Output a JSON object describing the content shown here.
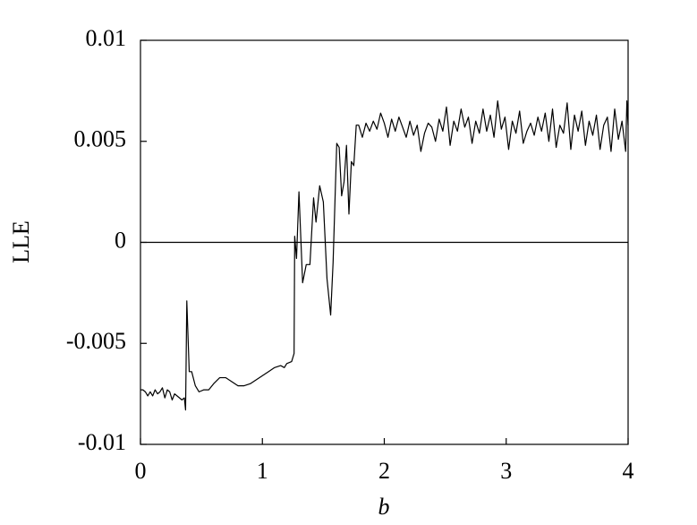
{
  "chart_data": {
    "type": "line",
    "xlabel": "b",
    "ylabel": "LLE",
    "xlim": [
      0,
      4
    ],
    "ylim": [
      -0.01,
      0.01
    ],
    "xticks": [
      0,
      1,
      2,
      3,
      4
    ],
    "yticks": [
      -0.01,
      -0.005,
      0,
      0.005,
      0.01
    ],
    "hline": 0,
    "series": [
      {
        "color": "#000000",
        "x": [
          0,
          0.02,
          0.04,
          0.06,
          0.08,
          0.1,
          0.12,
          0.14,
          0.16,
          0.18,
          0.2,
          0.22,
          0.24,
          0.26,
          0.28,
          0.3,
          0.32,
          0.34,
          0.36,
          0.37,
          0.38,
          0.4,
          0.42,
          0.45,
          0.48,
          0.52,
          0.56,
          0.6,
          0.65,
          0.7,
          0.75,
          0.8,
          0.85,
          0.9,
          0.95,
          1.0,
          1.05,
          1.1,
          1.15,
          1.18,
          1.2,
          1.24,
          1.26,
          1.265,
          1.28,
          1.3,
          1.33,
          1.36,
          1.39,
          1.42,
          1.44,
          1.47,
          1.5,
          1.53,
          1.56,
          1.58,
          1.61,
          1.63,
          1.65,
          1.67,
          1.69,
          1.71,
          1.73,
          1.75,
          1.77,
          1.79,
          1.82,
          1.85,
          1.88,
          1.91,
          1.94,
          1.97,
          2.0,
          2.03,
          2.06,
          2.09,
          2.12,
          2.15,
          2.18,
          2.21,
          2.24,
          2.27,
          2.3,
          2.33,
          2.36,
          2.39,
          2.42,
          2.45,
          2.48,
          2.51,
          2.54,
          2.57,
          2.6,
          2.63,
          2.66,
          2.69,
          2.72,
          2.75,
          2.78,
          2.81,
          2.84,
          2.87,
          2.9,
          2.93,
          2.96,
          2.99,
          3.02,
          3.05,
          3.08,
          3.11,
          3.14,
          3.17,
          3.2,
          3.23,
          3.26,
          3.29,
          3.32,
          3.35,
          3.38,
          3.41,
          3.44,
          3.47,
          3.5,
          3.53,
          3.56,
          3.59,
          3.62,
          3.65,
          3.68,
          3.71,
          3.74,
          3.77,
          3.8,
          3.83,
          3.86,
          3.89,
          3.92,
          3.95,
          3.98,
          3.99,
          4.0
        ],
        "values": [
          -0.0073,
          -0.0073,
          -0.0074,
          -0.0076,
          -0.0074,
          -0.0076,
          -0.0073,
          -0.0075,
          -0.0074,
          -0.0072,
          -0.0077,
          -0.0073,
          -0.0074,
          -0.0078,
          -0.0075,
          -0.0076,
          -0.0077,
          -0.0078,
          -0.0077,
          -0.0083,
          -0.0029,
          -0.0064,
          -0.0064,
          -0.0071,
          -0.0074,
          -0.0073,
          -0.0073,
          -0.007,
          -0.0067,
          -0.0067,
          -0.0069,
          -0.0071,
          -0.0071,
          -0.007,
          -0.0068,
          -0.0066,
          -0.0064,
          -0.0062,
          -0.0061,
          -0.0062,
          -0.006,
          -0.0059,
          -0.0055,
          0.0003,
          -0.0008,
          0.0025,
          -0.002,
          -0.0011,
          -0.0011,
          0.0022,
          0.001,
          0.0028,
          0.002,
          -0.0018,
          -0.0036,
          -0.001,
          0.0049,
          0.0047,
          0.0023,
          0.003,
          0.0048,
          0.0014,
          0.004,
          0.0038,
          0.0058,
          0.0058,
          0.0052,
          0.0059,
          0.0055,
          0.006,
          0.0056,
          0.0064,
          0.0059,
          0.0052,
          0.0061,
          0.0055,
          0.0062,
          0.0057,
          0.0052,
          0.006,
          0.0053,
          0.0058,
          0.0045,
          0.0054,
          0.0059,
          0.0057,
          0.005,
          0.0061,
          0.0055,
          0.0067,
          0.0048,
          0.006,
          0.0055,
          0.0066,
          0.0057,
          0.0062,
          0.0049,
          0.006,
          0.0054,
          0.0066,
          0.0055,
          0.0063,
          0.0052,
          0.007,
          0.0056,
          0.0062,
          0.0046,
          0.006,
          0.0054,
          0.0065,
          0.0049,
          0.0055,
          0.0059,
          0.0053,
          0.0062,
          0.0055,
          0.0064,
          0.005,
          0.0066,
          0.0047,
          0.0058,
          0.0054,
          0.0069,
          0.0046,
          0.0063,
          0.0055,
          0.0065,
          0.0048,
          0.006,
          0.0053,
          0.0063,
          0.0046,
          0.0058,
          0.0062,
          0.0045,
          0.0066,
          0.0051,
          0.006,
          0.0045,
          0.007,
          0.0058
        ]
      }
    ]
  }
}
